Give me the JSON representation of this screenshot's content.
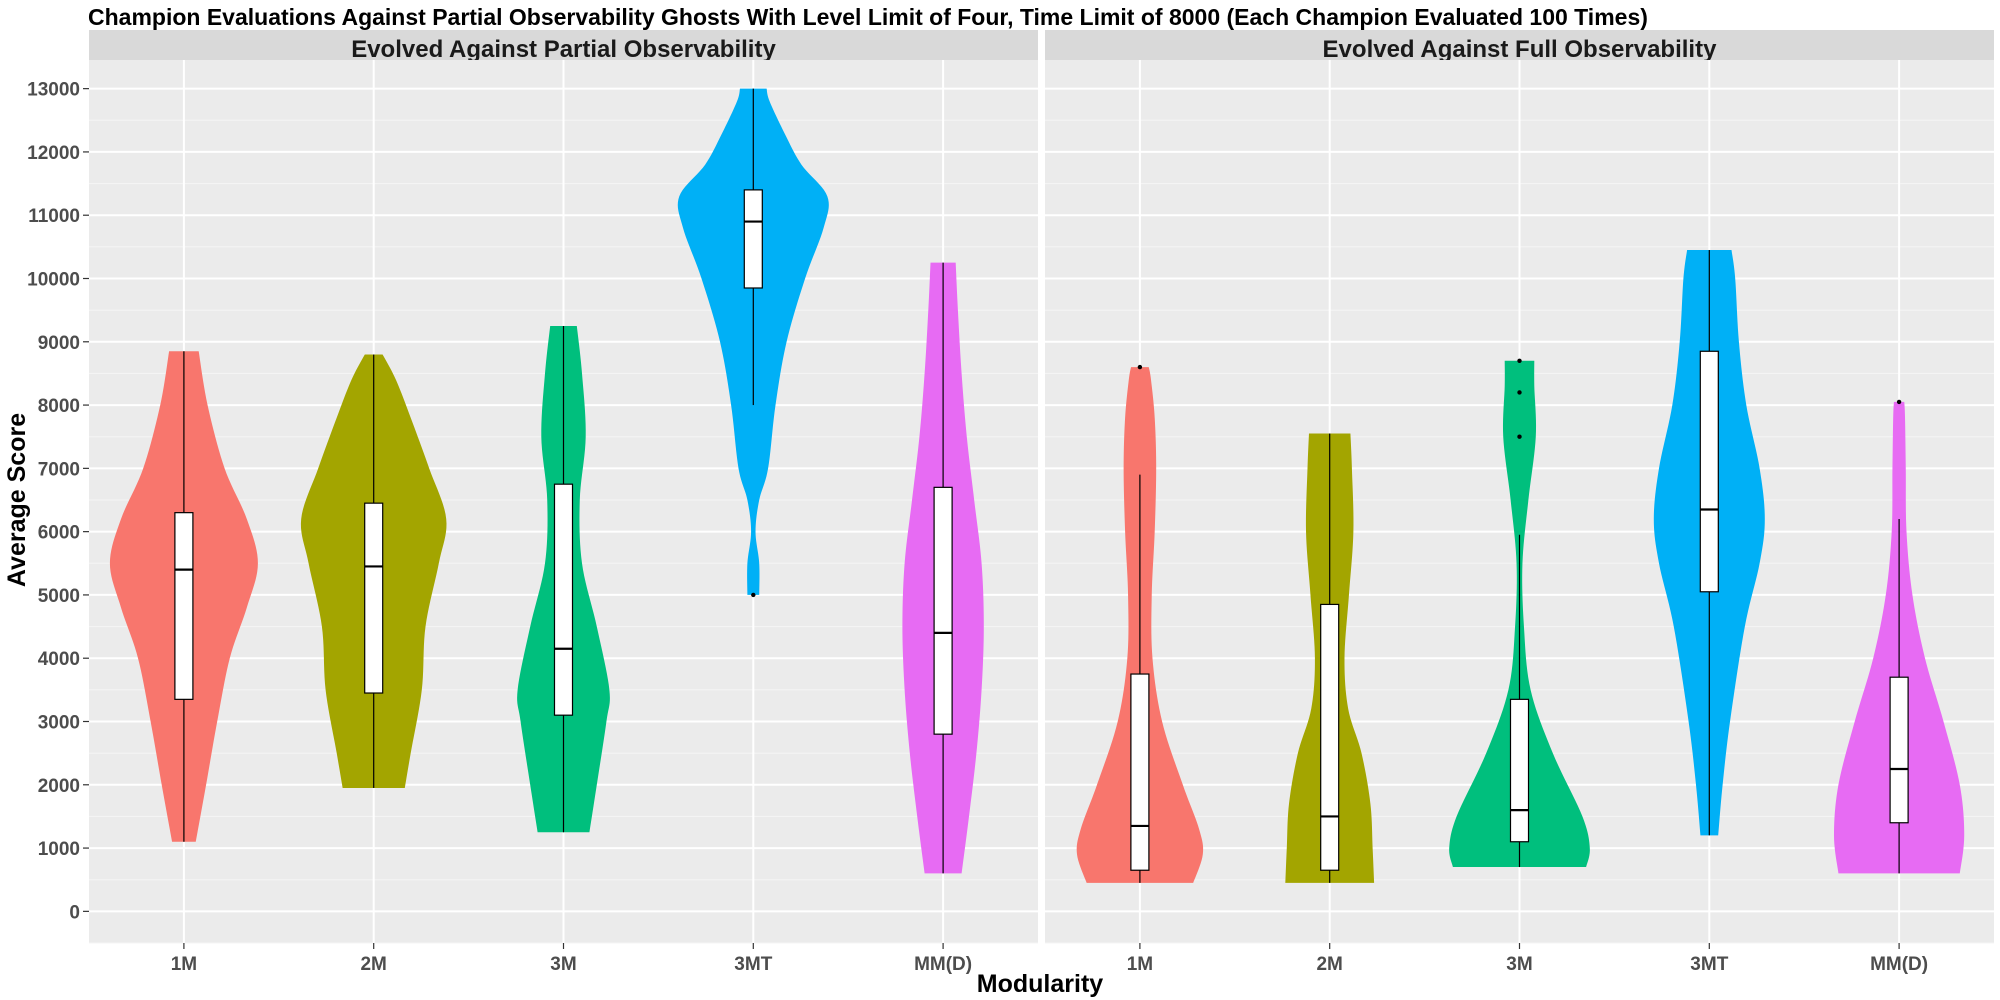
{
  "chart_data": {
    "type": "violin",
    "title": "Champion Evaluations Against Partial Observability Ghosts With Level Limit of Four, Time Limit of 8000  (Each Champion Evaluated 100 Times)",
    "xlabel": "Modularity",
    "ylabel": "Average Score",
    "ylim": [
      -500,
      13500
    ],
    "yticks": [
      0,
      1000,
      2000,
      3000,
      4000,
      5000,
      6000,
      7000,
      8000,
      9000,
      10000,
      11000,
      12000,
      13000
    ],
    "categories": [
      "1M",
      "2M",
      "3M",
      "3MT",
      "MM(D)"
    ],
    "colors": {
      "1M": "#F8766D",
      "2M": "#A3A500",
      "3M": "#00BF7D",
      "3MT": "#00B0F6",
      "MM(D)": "#E76BF3"
    },
    "panel_background": "#EBEBEB",
    "strip_background": "#D9D9D9",
    "grid": true,
    "legend": "none",
    "panels": [
      {
        "name": "Evolved Against Partial Observability",
        "groups": [
          {
            "category": "1M",
            "box": {
              "q1": 3350,
              "median": 5400,
              "q3": 6300,
              "whisker_low": 1100,
              "whisker_high": 8850
            },
            "outliers": [],
            "density": [
              [
                1100,
                0.16
              ],
              [
                2000,
                0.3
              ],
              [
                3000,
                0.45
              ],
              [
                4000,
                0.62
              ],
              [
                4800,
                0.85
              ],
              [
                5500,
                1.0
              ],
              [
                6200,
                0.85
              ],
              [
                7000,
                0.55
              ],
              [
                8000,
                0.32
              ],
              [
                8850,
                0.2
              ]
            ]
          },
          {
            "category": "2M",
            "box": {
              "q1": 3450,
              "median": 5450,
              "q3": 6450,
              "whisker_low": 1950,
              "whisker_high": 8800
            },
            "outliers": [],
            "density": [
              [
                1950,
                0.42
              ],
              [
                2500,
                0.5
              ],
              [
                3500,
                0.65
              ],
              [
                4500,
                0.7
              ],
              [
                5500,
                0.88
              ],
              [
                6200,
                0.98
              ],
              [
                7000,
                0.75
              ],
              [
                7800,
                0.5
              ],
              [
                8400,
                0.3
              ],
              [
                8800,
                0.12
              ]
            ]
          },
          {
            "category": "3M",
            "box": {
              "q1": 3100,
              "median": 4150,
              "q3": 6750,
              "whisker_low": 1250,
              "whisker_high": 9250
            },
            "outliers": [],
            "density": [
              [
                1250,
                0.35
              ],
              [
                2000,
                0.45
              ],
              [
                3000,
                0.58
              ],
              [
                3500,
                0.62
              ],
              [
                4500,
                0.45
              ],
              [
                5500,
                0.25
              ],
              [
                6500,
                0.22
              ],
              [
                7500,
                0.3
              ],
              [
                8500,
                0.25
              ],
              [
                9250,
                0.18
              ]
            ]
          },
          {
            "category": "3MT",
            "box": {
              "q1": 9850,
              "median": 10900,
              "q3": 11400,
              "whisker_low": 8000,
              "whisker_high": 13000
            },
            "outliers": [
              5000
            ],
            "density": [
              [
                5000,
                0.08
              ],
              [
                5500,
                0.08
              ],
              [
                6000,
                0.03
              ],
              [
                6500,
                0.08
              ],
              [
                7000,
                0.2
              ],
              [
                8000,
                0.3
              ],
              [
                9000,
                0.45
              ],
              [
                10000,
                0.7
              ],
              [
                10800,
                0.95
              ],
              [
                11300,
                1.0
              ],
              [
                11800,
                0.65
              ],
              [
                12300,
                0.42
              ],
              [
                12800,
                0.22
              ],
              [
                13000,
                0.18
              ]
            ]
          },
          {
            "category": "MM(D)",
            "box": {
              "q1": 2800,
              "median": 4400,
              "q3": 6700,
              "whisker_low": 600,
              "whisker_high": 10250
            },
            "outliers": [],
            "density": [
              [
                600,
                0.25
              ],
              [
                1500,
                0.35
              ],
              [
                2500,
                0.45
              ],
              [
                3500,
                0.52
              ],
              [
                4500,
                0.55
              ],
              [
                5500,
                0.52
              ],
              [
                6500,
                0.42
              ],
              [
                7500,
                0.32
              ],
              [
                8500,
                0.25
              ],
              [
                9500,
                0.2
              ],
              [
                10250,
                0.17
              ]
            ]
          }
        ]
      },
      {
        "name": "Evolved Against Full Observability",
        "groups": [
          {
            "category": "1M",
            "box": {
              "q1": 650,
              "median": 1350,
              "q3": 3750,
              "whisker_low": 450,
              "whisker_high": 6900
            },
            "outliers": [
              8600
            ],
            "density": [
              [
                450,
                0.72
              ],
              [
                900,
                0.85
              ],
              [
                1300,
                0.8
              ],
              [
                2000,
                0.58
              ],
              [
                3000,
                0.3
              ],
              [
                4000,
                0.17
              ],
              [
                5000,
                0.16
              ],
              [
                6000,
                0.2
              ],
              [
                7000,
                0.22
              ],
              [
                7800,
                0.2
              ],
              [
                8400,
                0.15
              ],
              [
                8600,
                0.12
              ]
            ]
          },
          {
            "category": "2M",
            "box": {
              "q1": 650,
              "median": 1500,
              "q3": 4850,
              "whisker_low": 450,
              "whisker_high": 7550
            },
            "outliers": [],
            "density": [
              [
                450,
                0.6
              ],
              [
                1000,
                0.58
              ],
              [
                1700,
                0.55
              ],
              [
                2500,
                0.43
              ],
              [
                3200,
                0.25
              ],
              [
                4000,
                0.2
              ],
              [
                5000,
                0.26
              ],
              [
                6000,
                0.32
              ],
              [
                7000,
                0.3
              ],
              [
                7550,
                0.28
              ]
            ]
          },
          {
            "category": "3M",
            "box": {
              "q1": 1100,
              "median": 1600,
              "q3": 3350,
              "whisker_low": 700,
              "whisker_high": 5950
            },
            "outliers": [
              7500,
              8200,
              8700
            ],
            "density": [
              [
                700,
                0.9
              ],
              [
                1000,
                0.95
              ],
              [
                1500,
                0.85
              ],
              [
                2500,
                0.45
              ],
              [
                3500,
                0.15
              ],
              [
                4500,
                0.06
              ],
              [
                5500,
                0.04
              ],
              [
                6500,
                0.12
              ],
              [
                7500,
                0.22
              ],
              [
                8300,
                0.2
              ],
              [
                8700,
                0.2
              ]
            ]
          },
          {
            "category": "3MT",
            "box": {
              "q1": 5050,
              "median": 6350,
              "q3": 8850,
              "whisker_low": 1200,
              "whisker_high": 10450
            },
            "outliers": [],
            "density": [
              [
                1200,
                0.12
              ],
              [
                2000,
                0.18
              ],
              [
                3000,
                0.28
              ],
              [
                4500,
                0.48
              ],
              [
                5500,
                0.68
              ],
              [
                6200,
                0.75
              ],
              [
                7000,
                0.68
              ],
              [
                8000,
                0.5
              ],
              [
                9000,
                0.4
              ],
              [
                10000,
                0.35
              ],
              [
                10450,
                0.3
              ]
            ]
          },
          {
            "category": "MM(D)",
            "box": {
              "q1": 1400,
              "median": 2250,
              "q3": 3700,
              "whisker_low": 600,
              "whisker_high": 6200
            },
            "outliers": [
              8050
            ],
            "density": [
              [
                600,
                0.82
              ],
              [
                1200,
                0.88
              ],
              [
                2000,
                0.82
              ],
              [
                3000,
                0.6
              ],
              [
                4000,
                0.35
              ],
              [
                5000,
                0.18
              ],
              [
                6000,
                0.1
              ],
              [
                7000,
                0.09
              ],
              [
                7800,
                0.08
              ],
              [
                8050,
                0.07
              ]
            ]
          }
        ]
      }
    ]
  }
}
